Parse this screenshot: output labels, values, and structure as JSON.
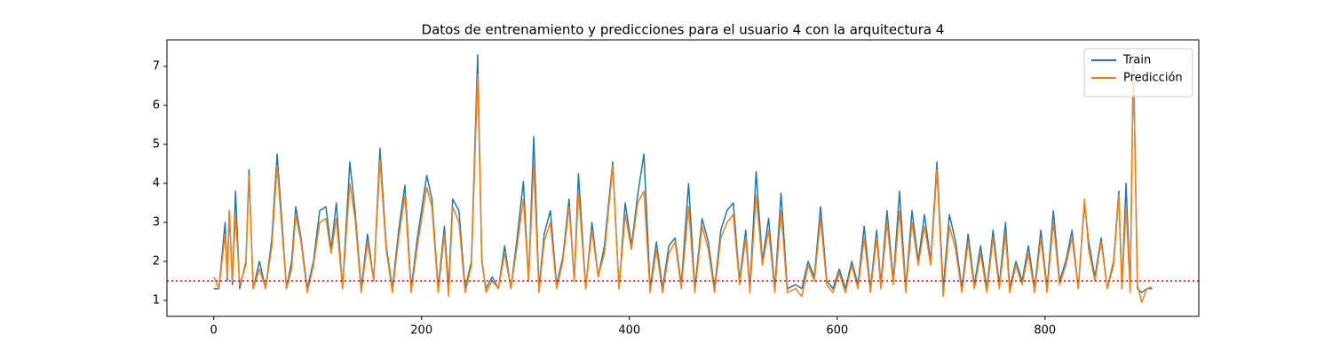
{
  "chart_data": {
    "type": "line",
    "title": "Datos de entrenamiento y predicciones para el usuario 4 con la arquitectura 4",
    "x": [
      0,
      5,
      11,
      13,
      15,
      18,
      21,
      25,
      31,
      34,
      38,
      44,
      50,
      56,
      61,
      66,
      70,
      75,
      79,
      84,
      90,
      96,
      102,
      108,
      113,
      118,
      124,
      131,
      136,
      142,
      148,
      154,
      160,
      166,
      172,
      178,
      184,
      190,
      196,
      205,
      210,
      216,
      222,
      226,
      230,
      236,
      242,
      248,
      254,
      258,
      262,
      268,
      274,
      280,
      286,
      292,
      298,
      303,
      308,
      313,
      318,
      324,
      330,
      336,
      342,
      347,
      351,
      358,
      364,
      370,
      376,
      384,
      390,
      396,
      402,
      408,
      414,
      420,
      426,
      432,
      438,
      444,
      450,
      457,
      463,
      470,
      476,
      482,
      488,
      494,
      500,
      506,
      512,
      516,
      522,
      528,
      534,
      540,
      546,
      552,
      560,
      566,
      572,
      578,
      584,
      590,
      596,
      602,
      608,
      614,
      620,
      626,
      632,
      638,
      642,
      648,
      654,
      660,
      666,
      672,
      678,
      684,
      690,
      696,
      702,
      708,
      714,
      720,
      726,
      732,
      738,
      744,
      750,
      756,
      762,
      766,
      772,
      778,
      784,
      790,
      796,
      802,
      808,
      814,
      820,
      826,
      832,
      838,
      842,
      848,
      854,
      860,
      866,
      871,
      874,
      878,
      882,
      885,
      889,
      893,
      898,
      903
    ],
    "series": [
      {
        "name": "Train",
        "color": "#1f77b4",
        "values": [
          1.3,
          1.3,
          3.0,
          1.5,
          3.3,
          1.4,
          3.8,
          1.3,
          2.0,
          4.35,
          1.3,
          2.0,
          1.3,
          2.6,
          4.75,
          2.9,
          1.3,
          2.0,
          3.4,
          2.6,
          1.3,
          2.0,
          3.3,
          3.4,
          2.3,
          3.5,
          1.3,
          4.55,
          3.3,
          1.3,
          2.7,
          1.5,
          4.9,
          2.4,
          1.3,
          2.8,
          3.95,
          1.3,
          2.6,
          4.2,
          3.6,
          1.3,
          2.9,
          1.3,
          3.6,
          3.3,
          1.3,
          2.0,
          7.3,
          2.0,
          1.3,
          1.6,
          1.3,
          2.4,
          1.3,
          2.6,
          4.05,
          1.5,
          5.2,
          1.3,
          2.7,
          3.3,
          1.4,
          2.1,
          3.6,
          1.5,
          4.25,
          1.3,
          3.0,
          1.6,
          2.4,
          4.55,
          1.3,
          3.5,
          2.4,
          3.7,
          4.75,
          1.3,
          2.5,
          1.3,
          2.4,
          2.6,
          1.4,
          4.0,
          1.3,
          3.1,
          2.5,
          1.3,
          2.8,
          3.3,
          3.5,
          1.5,
          2.8,
          1.3,
          4.3,
          2.0,
          3.1,
          1.3,
          3.75,
          1.3,
          1.4,
          1.3,
          2.0,
          1.6,
          3.4,
          1.5,
          1.3,
          1.8,
          1.3,
          2.0,
          1.4,
          2.9,
          1.3,
          2.8,
          1.4,
          3.3,
          1.5,
          3.8,
          1.3,
          3.3,
          2.0,
          3.2,
          2.0,
          4.55,
          1.3,
          3.2,
          2.5,
          1.3,
          2.7,
          1.4,
          2.4,
          1.3,
          2.8,
          1.4,
          3.0,
          1.3,
          2.0,
          1.5,
          2.4,
          1.3,
          2.8,
          1.3,
          3.3,
          1.5,
          2.0,
          2.8,
          1.3,
          3.5,
          2.5,
          1.6,
          2.6,
          1.3,
          2.0,
          3.8,
          1.3,
          4.0,
          1.3,
          7.25,
          1.3,
          1.2,
          1.3,
          1.3
        ]
      },
      {
        "name": "Predicción",
        "color": "#ff7f0e",
        "values": [
          1.6,
          1.3,
          2.7,
          1.6,
          3.3,
          1.5,
          3.2,
          1.4,
          1.9,
          4.2,
          1.3,
          1.8,
          1.3,
          2.4,
          4.45,
          2.7,
          1.3,
          1.8,
          3.2,
          2.5,
          1.2,
          1.9,
          3.0,
          3.1,
          2.2,
          3.1,
          1.3,
          4.0,
          3.1,
          1.2,
          2.5,
          1.5,
          4.6,
          2.3,
          1.2,
          2.6,
          3.7,
          1.2,
          2.4,
          3.9,
          3.4,
          1.2,
          2.7,
          1.1,
          3.4,
          3.0,
          1.2,
          1.9,
          6.8,
          2.1,
          1.2,
          1.5,
          1.3,
          2.2,
          1.3,
          2.4,
          3.6,
          1.5,
          4.5,
          1.2,
          2.5,
          3.0,
          1.3,
          2.0,
          3.4,
          1.5,
          3.8,
          1.3,
          2.8,
          1.6,
          2.2,
          4.45,
          1.3,
          3.2,
          2.3,
          3.5,
          3.8,
          1.2,
          2.3,
          1.2,
          2.2,
          2.5,
          1.3,
          3.4,
          1.2,
          2.9,
          2.3,
          1.2,
          2.6,
          3.0,
          3.2,
          1.4,
          2.6,
          1.2,
          3.7,
          1.9,
          2.8,
          1.2,
          3.3,
          1.2,
          1.3,
          1.1,
          1.9,
          1.5,
          3.1,
          1.4,
          1.2,
          1.7,
          1.2,
          1.9,
          1.3,
          2.6,
          1.2,
          2.6,
          1.3,
          3.0,
          1.4,
          3.3,
          1.2,
          3.0,
          1.9,
          2.9,
          1.9,
          4.35,
          1.1,
          2.9,
          2.3,
          1.2,
          2.5,
          1.3,
          2.2,
          1.2,
          2.6,
          1.3,
          2.7,
          1.2,
          1.9,
          1.4,
          2.2,
          1.2,
          2.6,
          1.2,
          3.0,
          1.4,
          1.9,
          2.6,
          1.3,
          3.6,
          2.3,
          1.5,
          2.5,
          1.3,
          1.9,
          3.7,
          1.3,
          3.4,
          1.2,
          7.3,
          1.4,
          0.95,
          1.3,
          1.35
        ]
      }
    ],
    "xlim": [
      -45,
      948
    ],
    "ylim": [
      0.59,
      7.68
    ],
    "xticks": [
      0,
      200,
      400,
      600,
      800
    ],
    "yticks": [
      1,
      2,
      3,
      4,
      5,
      6,
      7
    ],
    "hline": 1.5,
    "hline_color": "red",
    "legend": "upper right",
    "grid": false
  }
}
